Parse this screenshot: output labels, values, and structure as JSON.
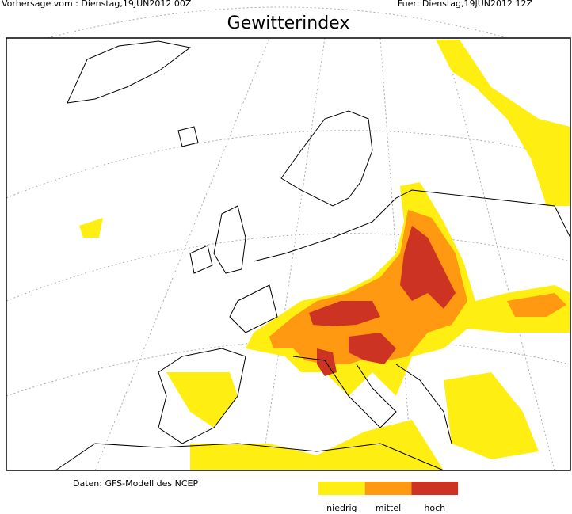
{
  "header": {
    "left": "Vorhersage vom : Dienstag,19JUN2012 00Z",
    "right": "Fuer: Dienstag,19JUN2012 12Z",
    "title": "Gewitterindex"
  },
  "footer": {
    "source": "Daten: GFS-Modell des NCEP"
  },
  "legend": {
    "items": [
      {
        "label": "niedrig",
        "color": "#ffee11"
      },
      {
        "label": "mittel",
        "color": "#ff9911"
      },
      {
        "label": "hoch",
        "color": "#cc3322"
      }
    ]
  }
}
